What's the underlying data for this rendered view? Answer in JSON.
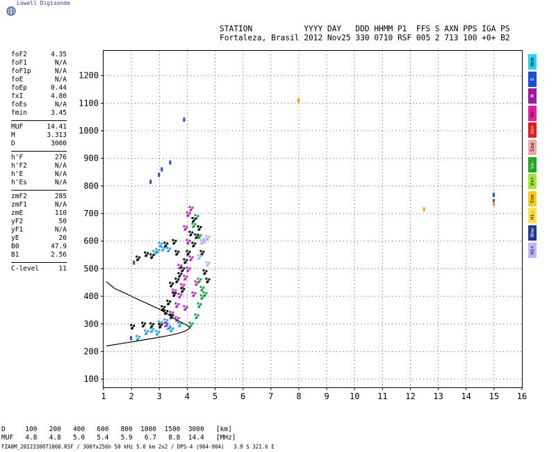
{
  "brand": "Lowell Digisonde",
  "header": {
    "line1": "STATION           YYYY DAY   DDD HHMM P1  FFS S AXN PPS IGA PS",
    "line2": "Fortaleza, Brasil 2012 Nov25 330 0710 RSF 005 2 713 100 +0+ B2"
  },
  "scaled": {
    "group1": [
      {
        "k": "foF2",
        "v": "4.35"
      },
      {
        "k": "foF1",
        "v": "N/A"
      },
      {
        "k": "foF1p",
        "v": "N/A"
      },
      {
        "k": "foE",
        "v": "N/A"
      },
      {
        "k": "foEp",
        "v": "0.44"
      },
      {
        "k": "fxI",
        "v": "4.80"
      },
      {
        "k": "foEs",
        "v": "N/A"
      },
      {
        "k": "fmin",
        "v": "3.45"
      }
    ],
    "group2": [
      {
        "k": "MUF",
        "v": "14.41"
      },
      {
        "k": "M",
        "v": "3.313"
      },
      {
        "k": "D",
        "v": "3000"
      }
    ],
    "group3": [
      {
        "k": "h'F",
        "v": "276"
      },
      {
        "k": "h'F2",
        "v": "N/A"
      },
      {
        "k": "h'E",
        "v": "N/A"
      },
      {
        "k": "h'Es",
        "v": "N/A"
      }
    ],
    "group4": [
      {
        "k": "zmF2",
        "v": "285"
      },
      {
        "k": "zmF1",
        "v": "N/A"
      },
      {
        "k": "zmE",
        "v": "110"
      },
      {
        "k": "yF2",
        "v": "50"
      },
      {
        "k": "yF1",
        "v": "N/A"
      },
      {
        "k": "yE",
        "v": "20"
      },
      {
        "k": "B0",
        "v": "47.9"
      },
      {
        "k": "B1",
        "v": "2.56"
      }
    ],
    "group5": [
      {
        "k": "C-level",
        "v": "11"
      }
    ]
  },
  "legend": [
    {
      "label": "Nne",
      "color": "#22d3ee"
    },
    {
      "label": "E",
      "color": "#1d4ed8"
    },
    {
      "label": "W",
      "color": "#9d1d9d"
    },
    {
      "label": "Vo-",
      "color": "#e61ea1"
    },
    {
      "label": "Vo+",
      "color": "#e11d1d"
    },
    {
      "label": "Ssw",
      "color": "#f4a6a6"
    },
    {
      "label": "Vx-",
      "color": "#22a722"
    },
    {
      "label": "Vx+",
      "color": "#a3e635"
    },
    {
      "label": "Sse",
      "color": "#facc15"
    },
    {
      "label": "Hi-",
      "color": "#fde047"
    },
    {
      "label": "Nnw",
      "color": "#1e3a8a"
    },
    {
      "label": "Hi+",
      "color": "#c4b5fd"
    }
  ],
  "bottom": {
    "d_row": "D     100   200   400   600   800  1000  1500  3000   [km]",
    "muf_row": "MUF   4.8   4.8   5.0   5.4   5.9   6.7   8.8  14.4   [MHz]",
    "footer": "FZA0M_2012330071000.RSF / 300fx256h 50 kHz 5.0 km 2x2 / DPS-4 (904-904)   3.9 S 321.6 E"
  },
  "chart_data": {
    "type": "scatter",
    "title": "",
    "xlabel": "",
    "ylabel": "",
    "xlim": [
      1,
      16
    ],
    "ylim": [
      70,
      1290
    ],
    "x_ticks": [
      "1",
      "2",
      "3",
      "4",
      "5",
      "6",
      "7",
      "8",
      "9",
      "10",
      "11",
      "12",
      "13",
      "14",
      "15",
      "16"
    ],
    "y_ticks": [
      "100",
      "200",
      "300",
      "400",
      "500",
      "600",
      "700",
      "800",
      "900",
      "1000",
      "1100",
      "1200"
    ],
    "grid": true,
    "profile_curve": [
      [
        1.1,
        220
      ],
      [
        1.6,
        228
      ],
      [
        2.2,
        238
      ],
      [
        2.8,
        248
      ],
      [
        3.3,
        257
      ],
      [
        3.7,
        266
      ],
      [
        3.95,
        275
      ],
      [
        4.1,
        285
      ],
      [
        4.0,
        295
      ],
      [
        3.8,
        305
      ],
      [
        3.55,
        318
      ],
      [
        3.3,
        335
      ],
      [
        3.0,
        353
      ],
      [
        2.6,
        372
      ],
      [
        2.2,
        390
      ],
      [
        1.8,
        410
      ],
      [
        1.4,
        428
      ],
      [
        1.1,
        453
      ]
    ],
    "echo_clusters": [
      {
        "name": "cyan",
        "color": "#22a5e6",
        "points": [
          [
            2.2,
            252
          ],
          [
            2.5,
            272
          ],
          [
            3.0,
            305
          ],
          [
            3.2,
            312
          ],
          [
            3.3,
            290
          ],
          [
            3.7,
            300
          ],
          [
            2.7,
            280
          ],
          [
            2.9,
            270
          ],
          [
            3.4,
            282
          ],
          [
            2.8,
            560
          ],
          [
            3.3,
            572
          ],
          [
            3.0,
            590
          ],
          [
            3.1,
            575
          ],
          [
            2.9,
            567
          ]
        ]
      },
      {
        "name": "magenta",
        "color": "#c026d3",
        "points": [
          [
            3.2,
            300
          ],
          [
            3.4,
            340
          ],
          [
            3.6,
            370
          ],
          [
            3.7,
            405
          ],
          [
            3.8,
            440
          ],
          [
            3.9,
            470
          ],
          [
            4.0,
            500
          ],
          [
            4.1,
            540
          ],
          [
            4.0,
            600
          ],
          [
            3.9,
            650
          ],
          [
            4.0,
            700
          ],
          [
            4.1,
            720
          ],
          [
            3.6,
            320
          ],
          [
            3.9,
            360
          ],
          [
            4.2,
            410
          ],
          [
            4.3,
            450
          ],
          [
            3.5,
            420
          ],
          [
            3.7,
            510
          ]
        ]
      },
      {
        "name": "green",
        "color": "#16a34a",
        "points": [
          [
            4.1,
            300
          ],
          [
            4.3,
            330
          ],
          [
            4.4,
            370
          ],
          [
            4.5,
            400
          ],
          [
            4.5,
            430
          ],
          [
            4.4,
            460
          ],
          [
            4.3,
            690
          ],
          [
            4.2,
            660
          ],
          [
            4.4,
            620
          ],
          [
            4.6,
            410
          ]
        ]
      },
      {
        "name": "black",
        "color": "#111111",
        "points": [
          [
            2.0,
            292
          ],
          [
            2.4,
            300
          ],
          [
            2.7,
            298
          ],
          [
            3.0,
            296
          ],
          [
            3.2,
            345
          ],
          [
            3.3,
            380
          ],
          [
            3.5,
            410
          ],
          [
            3.6,
            460
          ],
          [
            3.8,
            500
          ],
          [
            3.9,
            530
          ],
          [
            4.0,
            560
          ],
          [
            4.2,
            590
          ],
          [
            4.3,
            620
          ],
          [
            4.4,
            650
          ],
          [
            4.5,
            560
          ],
          [
            4.6,
            490
          ],
          [
            4.7,
            460
          ],
          [
            3.1,
            360
          ],
          [
            3.4,
            445
          ],
          [
            3.7,
            480
          ],
          [
            3.6,
            560
          ],
          [
            2.2,
            540
          ],
          [
            2.5,
            555
          ],
          [
            2.7,
            548
          ],
          [
            3.2,
            590
          ],
          [
            3.5,
            600
          ],
          [
            4.1,
            630
          ],
          [
            4.2,
            680
          ],
          [
            3.4,
            330
          ],
          [
            3.8,
            425
          ]
        ]
      },
      {
        "name": "lavender",
        "color": "#a5b4fc",
        "points": [
          [
            4.5,
            600
          ],
          [
            4.7,
            615
          ],
          [
            4.6,
            605
          ],
          [
            4.4,
            545
          ],
          [
            4.7,
            520
          ]
        ]
      },
      {
        "name": "stray",
        "color": "#1d4ed8",
        "points": [
          [
            2.7,
            815
          ],
          [
            3.0,
            840
          ],
          [
            3.1,
            860
          ],
          [
            3.4,
            885
          ],
          [
            3.9,
            1040
          ],
          [
            15.0,
            768
          ],
          [
            15.0,
            745
          ],
          [
            2.1,
            522
          ],
          [
            2.0,
            248
          ]
        ]
      },
      {
        "name": "orange",
        "color": "#f59e0b",
        "points": [
          [
            12.5,
            715
          ],
          [
            15.0,
            735
          ],
          [
            8.0,
            1110
          ]
        ]
      }
    ]
  }
}
